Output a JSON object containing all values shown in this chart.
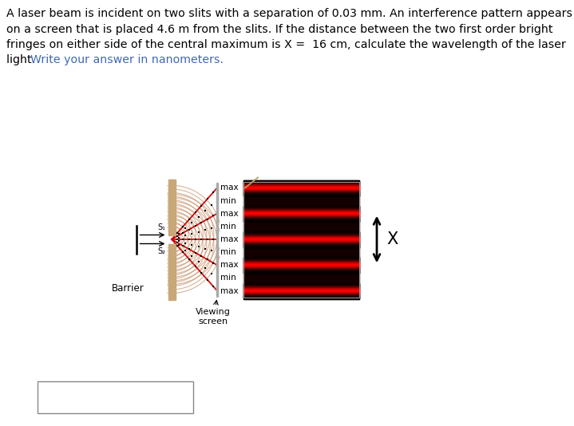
{
  "title_black": "A laser beam is incident on two slits with a separation of 0.03 mm. An interference pattern appears\non a screen that is placed 4.6 m from the slits. If the distance between the two first order bright\nfringes on either side of the central maximum is X =  16 cm, calculate the wavelength of the laser\nlight. ",
  "title_colored": "Write your answer in nanometers.",
  "title_color": "#4169b0",
  "labels": [
    "max",
    "min",
    "max",
    "min",
    "max",
    "min",
    "max",
    "min",
    "max"
  ],
  "barrier_color": "#c8a878",
  "barrier_shadow": "#a08050",
  "arc_color": "#c8906a",
  "red_line_color": "#cc0000",
  "screen_line_color": "#b0b0b0",
  "screen_bg": "#130000",
  "fringe_color": "#cc1100",
  "x_label": "X",
  "barrier_label": "Barrier",
  "viewing_label": "Viewing\nscreen",
  "s1_label": "S₁",
  "s2_label": "S₂",
  "fig_w": 7.19,
  "fig_h": 5.34,
  "dpi": 100
}
